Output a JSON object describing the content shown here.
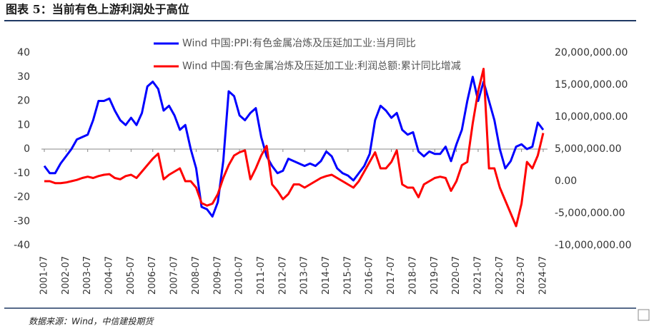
{
  "chart_data": {
    "type": "line",
    "title": "图表 5：当前有色上游利润处于高位",
    "source": "数据来源：Wind，中信建投期货",
    "categories": [
      "2001-07",
      null,
      null,
      null,
      "2002-07",
      null,
      null,
      null,
      "2003-07",
      null,
      null,
      null,
      "2004-07",
      null,
      null,
      null,
      "2005-07",
      null,
      null,
      null,
      "2006-07",
      null,
      null,
      null,
      "2007-07",
      null,
      null,
      null,
      "2008-07",
      null,
      null,
      null,
      "2009-07",
      null,
      null,
      null,
      "2010-07",
      null,
      null,
      null,
      "2011-07",
      null,
      null,
      null,
      "2012-07",
      null,
      null,
      null,
      "2013-07",
      null,
      null,
      null,
      "2014-07",
      null,
      null,
      null,
      "2015-07",
      null,
      null,
      null,
      "2016-07",
      null,
      null,
      null,
      "2017-07",
      null,
      null,
      null,
      "2018-07",
      null,
      null,
      null,
      "2019-07",
      null,
      null,
      null,
      "2020-07",
      null,
      null,
      null,
      "2021-07",
      null,
      null,
      null,
      "2022-07",
      null,
      null,
      null,
      "2023-07",
      null,
      null,
      null,
      "2024-07"
    ],
    "series": [
      {
        "name": "Wind 中国:PPI:有色金属冶炼及压延加工业:当月同比",
        "color": "#0000ff",
        "axis": "y",
        "values": [
          -7,
          -10,
          -10,
          -6,
          -3,
          0,
          4,
          5,
          6,
          12,
          20,
          20,
          21,
          16,
          12,
          10,
          13,
          10,
          15,
          26,
          28,
          25,
          16,
          18,
          14,
          8,
          10,
          0,
          -8,
          -24,
          -25,
          -28,
          -22,
          -5,
          24,
          22,
          14,
          12,
          15,
          17,
          5,
          -3,
          -7,
          -10,
          -9,
          -4,
          -5,
          -6,
          -7,
          -6,
          -7,
          -5,
          -1,
          -3,
          -8,
          -10,
          -11,
          -13,
          -10,
          -7,
          -2,
          12,
          18,
          16,
          13,
          15,
          8,
          6,
          7,
          -1,
          -3,
          -1,
          -2,
          -2,
          1,
          -5,
          2,
          8,
          20,
          30,
          20,
          28,
          20,
          12,
          0,
          -8,
          -5,
          1,
          2,
          0,
          1,
          11,
          8
        ]
      },
      {
        "name": "Wind 中国:有色金属冶炼及压延加工业:利润总额:累计同比增减",
        "color": "#ff0000",
        "axis": "y2",
        "values": [
          0,
          0,
          -300000,
          -300000,
          -200000,
          0,
          200000,
          500000,
          700000,
          500000,
          800000,
          1000000,
          1100000,
          500000,
          300000,
          800000,
          1000000,
          500000,
          1500000,
          2500000,
          3500000,
          4300000,
          300000,
          1000000,
          1500000,
          2000000,
          0,
          0,
          -1000000,
          -3400000,
          -3800000,
          -3500000,
          -2000000,
          500000,
          2500000,
          4000000,
          4500000,
          4800000,
          300000,
          2000000,
          4000000,
          5500000,
          -500000,
          -1500000,
          -2800000,
          -2000000,
          -500000,
          -500000,
          -1000000,
          -500000,
          0,
          500000,
          800000,
          1000000,
          500000,
          0,
          -500000,
          -1000000,
          0,
          1500000,
          3000000,
          4500000,
          2000000,
          2000000,
          3000000,
          4800000,
          -500000,
          -1000000,
          -1000000,
          -2500000,
          -500000,
          0,
          500000,
          700000,
          500000,
          -1500000,
          0,
          2500000,
          3000000,
          9000000,
          14000000,
          17500000,
          2000000,
          2000000,
          -1000000,
          -3000000,
          -5000000,
          -7000000,
          -3500000,
          3000000,
          2000000,
          4000000,
          7500000
        ]
      }
    ],
    "ylim": [
      -40,
      40
    ],
    "yticks": [
      40,
      30,
      20,
      10,
      0,
      -10,
      -20,
      -30,
      -40
    ],
    "y2lim": [
      -10000000,
      20000000
    ],
    "y2ticks": [
      {
        "value": 20000000,
        "label": "20,000,000.00"
      },
      {
        "value": 15000000,
        "label": "15,000,000.00"
      },
      {
        "value": 10000000,
        "label": "10,000,000.00"
      },
      {
        "value": 5000000,
        "label": "5,000,000.00"
      },
      {
        "value": 0,
        "label": "0.00"
      },
      {
        "value": -5000000,
        "label": "-5,000,000.00"
      },
      {
        "value": -10000000,
        "label": "-10,000,000.00"
      }
    ],
    "legend": "top",
    "grid": false
  }
}
